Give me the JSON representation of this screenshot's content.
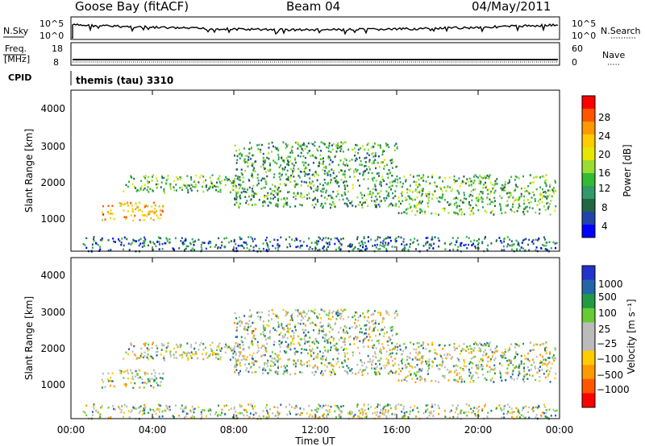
{
  "header": {
    "station": "Goose Bay (fitACF)",
    "beam": "Beam 04",
    "date": "04/May/2011"
  },
  "nsky_panel": {
    "left_label": "N.Sky",
    "left_ticks": [
      "10^5",
      "10^0"
    ],
    "right_label": "N.Search",
    "right_ticks": [
      "10^5",
      "10^0"
    ]
  },
  "freq_panel": {
    "left_label_1": "Freq.",
    "left_label_2": "[MHz]",
    "left_ticks": [
      "18",
      "8"
    ],
    "right_label": "Nave",
    "right_ticks": [
      "60",
      "0"
    ]
  },
  "cpid_panel": {
    "label": "CPID",
    "program": "themis (tau) 3310"
  },
  "axes": {
    "x_label": "Time UT",
    "x_ticks": [
      "00:00",
      "04:00",
      "08:00",
      "12:00",
      "16:00",
      "20:00",
      "00:00"
    ],
    "y_label": "Slant Range [km]",
    "y_ticks": [
      "4000",
      "3000",
      "2000",
      "1000"
    ]
  },
  "power_colorbar": {
    "title": "Power [dB]",
    "labels": [
      "28",
      "24",
      "20",
      "16",
      "12",
      "8",
      "4"
    ],
    "colors": [
      "#ff0000",
      "#ff5500",
      "#ff9900",
      "#ffcc00",
      "#e6e600",
      "#99dd33",
      "#33bb33",
      "#339966",
      "#226644",
      "#2244aa",
      "#0000ff"
    ]
  },
  "velocity_colorbar": {
    "title": "Velocity [m s⁻¹]",
    "labels": [
      "1000",
      "500",
      "100",
      "25",
      "−25",
      "−100",
      "−500",
      "−1000"
    ],
    "colors": [
      "#2233cc",
      "#2266aa",
      "#229944",
      "#66cc33",
      "#bbbbbb",
      "#bbbbbb",
      "#ffcc00",
      "#ff9900",
      "#ff5500",
      "#ff0000"
    ]
  },
  "chart_data": {
    "type": "heatmap",
    "x_range_hours": [
      0,
      24
    ],
    "y_range_km": [
      180,
      4600
    ],
    "scatter_regions": [
      {
        "description_id": "morning-near",
        "t_start": 1.5,
        "t_end": 4.5,
        "range_start_km": 1050,
        "range_end_km": 1550,
        "power_db": 22,
        "velocity": 150
      },
      {
        "description_id": "morning-far",
        "t_start": 2.5,
        "t_end": 8.5,
        "range_start_km": 1800,
        "range_end_km": 2300,
        "power_db": 12,
        "velocity": 0
      },
      {
        "description_id": "midday-band",
        "t_start": 8.0,
        "t_end": 16.0,
        "range_start_km": 1400,
        "range_end_km": 3200,
        "power_db": 10,
        "velocity": 0
      },
      {
        "description_id": "afternoon-band",
        "t_start": 16.0,
        "t_end": 23.8,
        "range_start_km": 1200,
        "range_end_km": 2300,
        "power_db": 12,
        "velocity": 0
      },
      {
        "description_id": "near-range-echoes",
        "t_start": 0.5,
        "t_end": 23.9,
        "range_start_km": 200,
        "range_end_km": 600,
        "power_db": 6,
        "velocity": 0
      }
    ]
  }
}
